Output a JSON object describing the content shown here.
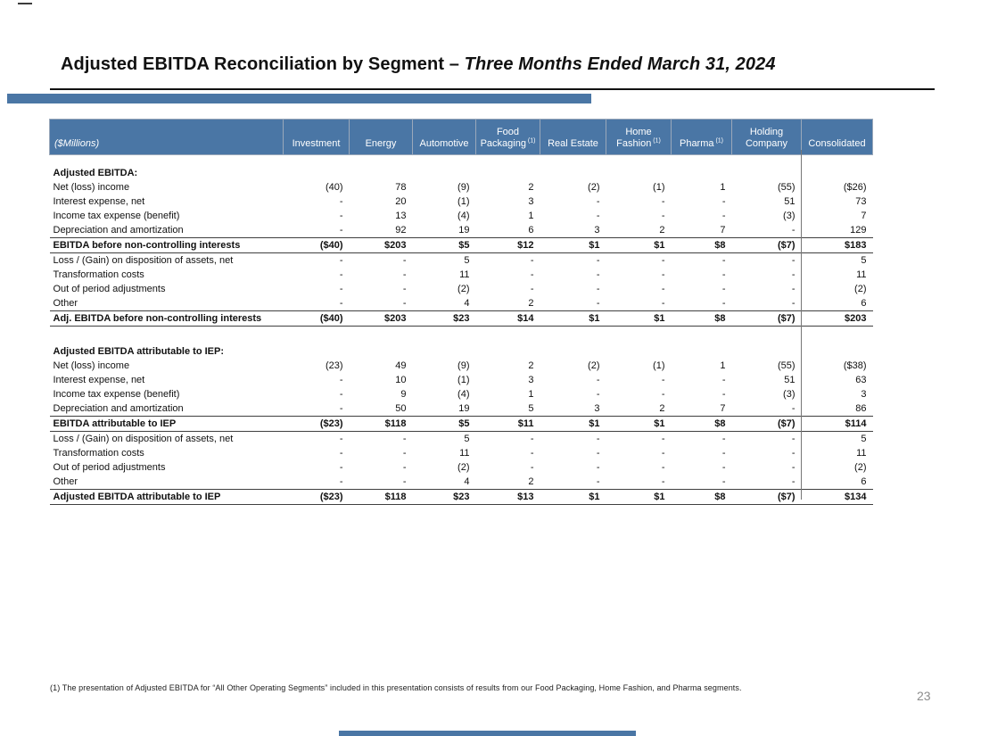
{
  "slide": {
    "title_main": "Adjusted EBITDA Reconciliation by Segment – ",
    "title_italic": "Three Months Ended March 31, 2024",
    "footnote": "(1) The presentation of Adjusted EBITDA for “All Other Operating Segments” included in this presentation consists of results from our Food Packaging, Home Fashion, and Pharma segments.",
    "page_number": "23"
  },
  "colors": {
    "header_blue": "#4A76A5",
    "accent_blue": "#4A76A5",
    "title_text": "#111111",
    "body_text": "#111111",
    "rule_black": "#111111",
    "divider_gray": "#777777",
    "page_number_gray": "#8C8C8C"
  },
  "table": {
    "unit_label": "($Millions)",
    "columns": [
      {
        "label": "Investment",
        "sup": ""
      },
      {
        "label": "Energy",
        "sup": ""
      },
      {
        "label": "Automotive",
        "sup": ""
      },
      {
        "label": "Food Packaging",
        "sup": "(1)"
      },
      {
        "label": "Real Estate",
        "sup": ""
      },
      {
        "label": "Home Fashion",
        "sup": "(1)"
      },
      {
        "label": "Pharma",
        "sup": "(1)"
      },
      {
        "label": "Holding Company",
        "sup": ""
      },
      {
        "label": "Consolidated",
        "sup": ""
      }
    ],
    "sections": [
      {
        "header": "Adjusted EBITDA:",
        "rows": [
          {
            "label": "Net (loss) income",
            "total": false,
            "values": [
              "(40)",
              "78",
              "(9)",
              "2",
              "(2)",
              "(1)",
              "1",
              "(55)",
              "($26)"
            ]
          },
          {
            "label": "Interest expense, net",
            "total": false,
            "values": [
              "-",
              "20",
              "(1)",
              "3",
              "-",
              "-",
              "-",
              "51",
              "73"
            ]
          },
          {
            "label": "Income tax expense (benefit)",
            "total": false,
            "values": [
              "-",
              "13",
              "(4)",
              "1",
              "-",
              "-",
              "-",
              "(3)",
              "7"
            ]
          },
          {
            "label": "Depreciation and amortization",
            "total": false,
            "values": [
              "-",
              "92",
              "19",
              "6",
              "3",
              "2",
              "7",
              "-",
              "129"
            ]
          },
          {
            "label": "EBITDA before non-controlling interests",
            "total": true,
            "values": [
              "($40)",
              "$203",
              "$5",
              "$12",
              "$1",
              "$1",
              "$8",
              "($7)",
              "$183"
            ]
          },
          {
            "label": "Loss / (Gain) on disposition of assets, net",
            "total": false,
            "values": [
              "-",
              "-",
              "5",
              "-",
              "-",
              "-",
              "-",
              "-",
              "5"
            ]
          },
          {
            "label": "Transformation costs",
            "total": false,
            "values": [
              "-",
              "-",
              "11",
              "-",
              "-",
              "-",
              "-",
              "-",
              "11"
            ]
          },
          {
            "label": "Out of period adjustments",
            "total": false,
            "values": [
              "-",
              "-",
              "(2)",
              "-",
              "-",
              "-",
              "-",
              "-",
              "(2)"
            ]
          },
          {
            "label": "Other",
            "total": false,
            "values": [
              "-",
              "-",
              "4",
              "2",
              "-",
              "-",
              "-",
              "-",
              "6"
            ]
          },
          {
            "label": "Adj. EBITDA before non-controlling interests",
            "total": true,
            "values": [
              "($40)",
              "$203",
              "$23",
              "$14",
              "$1",
              "$1",
              "$8",
              "($7)",
              "$203"
            ]
          }
        ]
      },
      {
        "header": "Adjusted EBITDA attributable to IEP:",
        "rows": [
          {
            "label": "Net (loss) income",
            "total": false,
            "values": [
              "(23)",
              "49",
              "(9)",
              "2",
              "(2)",
              "(1)",
              "1",
              "(55)",
              "($38)"
            ]
          },
          {
            "label": "Interest expense, net",
            "total": false,
            "values": [
              "-",
              "10",
              "(1)",
              "3",
              "-",
              "-",
              "-",
              "51",
              "63"
            ]
          },
          {
            "label": "Income tax expense (benefit)",
            "total": false,
            "values": [
              "-",
              "9",
              "(4)",
              "1",
              "-",
              "-",
              "-",
              "(3)",
              "3"
            ]
          },
          {
            "label": "Depreciation and amortization",
            "total": false,
            "values": [
              "-",
              "50",
              "19",
              "5",
              "3",
              "2",
              "7",
              "-",
              "86"
            ]
          },
          {
            "label": "EBITDA attributable to IEP",
            "total": true,
            "values": [
              "($23)",
              "$118",
              "$5",
              "$11",
              "$1",
              "$1",
              "$8",
              "($7)",
              "$114"
            ]
          },
          {
            "label": "Loss / (Gain) on disposition of assets, net",
            "total": false,
            "values": [
              "-",
              "-",
              "5",
              "-",
              "-",
              "-",
              "-",
              "-",
              "5"
            ]
          },
          {
            "label": "Transformation costs",
            "total": false,
            "values": [
              "-",
              "-",
              "11",
              "-",
              "-",
              "-",
              "-",
              "-",
              "11"
            ]
          },
          {
            "label": "Out of period adjustments",
            "total": false,
            "values": [
              "-",
              "-",
              "(2)",
              "-",
              "-",
              "-",
              "-",
              "-",
              "(2)"
            ]
          },
          {
            "label": "Other",
            "total": false,
            "values": [
              "-",
              "-",
              "4",
              "2",
              "-",
              "-",
              "-",
              "-",
              "6"
            ]
          },
          {
            "label": "Adjusted EBITDA attributable to IEP",
            "total": true,
            "values": [
              "($23)",
              "$118",
              "$23",
              "$13",
              "$1",
              "$1",
              "$8",
              "($7)",
              "$134"
            ]
          }
        ]
      }
    ]
  }
}
